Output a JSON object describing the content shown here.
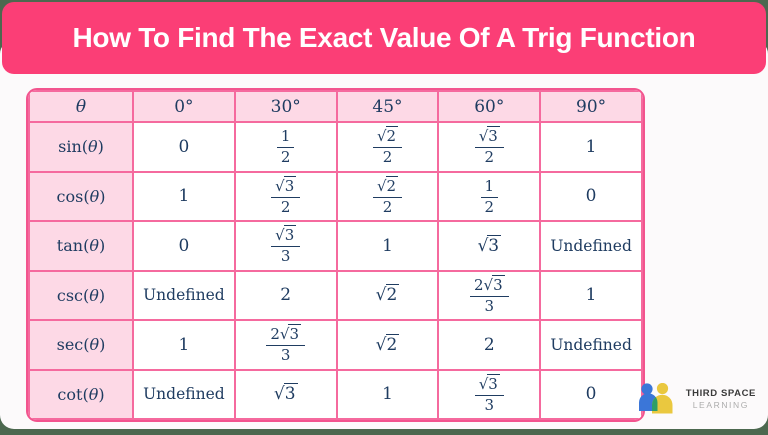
{
  "banner": {
    "title": "How To Find The Exact Value Of A Trig Function"
  },
  "table": {
    "header": [
      "θ",
      "0°",
      "30°",
      "45°",
      "60°",
      "90°"
    ],
    "rows": [
      {
        "label": "sin(θ)",
        "values": [
          "0",
          "1/2",
          "√2/2",
          "√3/2",
          "1"
        ]
      },
      {
        "label": "cos(θ)",
        "values": [
          "1",
          "√3/2",
          "√2/2",
          "1/2",
          "0"
        ]
      },
      {
        "label": "tan(θ)",
        "values": [
          "0",
          "√3/3",
          "1",
          "√3",
          "Undefined"
        ]
      },
      {
        "label": "csc(θ)",
        "values": [
          "Undefined",
          "2",
          "√2",
          "2√3/3",
          "1"
        ]
      },
      {
        "label": "sec(θ)",
        "values": [
          "1",
          "2√3/3",
          "√2",
          "2",
          "Undefined"
        ]
      },
      {
        "label": "cot(θ)",
        "values": [
          "Undefined",
          "√3",
          "1",
          "√3/3",
          "0"
        ]
      }
    ]
  },
  "logo": {
    "line1": "THIRD SPACE",
    "line2": "LEARNING"
  },
  "colors": {
    "background_green": "#4C684F",
    "banner_pink": "#FB3E76",
    "cell_pink": "#FDD9E6",
    "border_pink": "#F56A9E",
    "outer_border_pink": "#F2548E",
    "text_navy": "#1F3C61",
    "logo_blue": "#3B76D8",
    "logo_yellow": "#EAC83F",
    "logo_green": "#2E9E66",
    "card_white": "#FCFAFB"
  }
}
